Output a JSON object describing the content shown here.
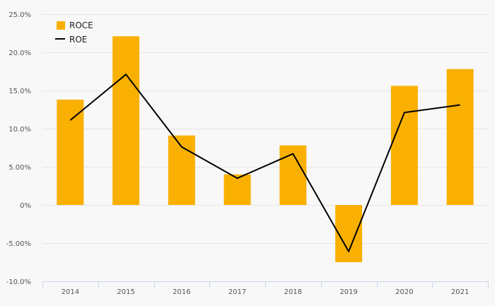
{
  "chart_data": {
    "type": "bar",
    "categories": [
      "2014",
      "2015",
      "2016",
      "2017",
      "2018",
      "2019",
      "2020",
      "2021"
    ],
    "series": [
      {
        "name": "ROCE",
        "type": "bar",
        "color": "#f9b000",
        "values": [
          13.8,
          22.1,
          9.1,
          4.0,
          7.8,
          -7.5,
          15.6,
          17.8
        ]
      },
      {
        "name": "ROE",
        "type": "line",
        "color": "#000000",
        "values": [
          11.1,
          17.1,
          7.6,
          3.5,
          6.7,
          -6.1,
          12.1,
          13.1
        ]
      }
    ],
    "ylim": [
      -10,
      25
    ],
    "y_ticks": [
      {
        "value": 25,
        "label": "25.0%"
      },
      {
        "value": 20,
        "label": "20.0%"
      },
      {
        "value": 15,
        "label": "15.0%"
      },
      {
        "value": 10,
        "label": "10.0%"
      },
      {
        "value": 5,
        "label": "5.00%"
      },
      {
        "value": 0,
        "label": "0%"
      },
      {
        "value": -5,
        "label": "-5.00%"
      },
      {
        "value": -10,
        "label": "-10.0%"
      }
    ],
    "grid": true,
    "legend_position": "top-left",
    "title": "",
    "xlabel": "",
    "ylabel": ""
  }
}
